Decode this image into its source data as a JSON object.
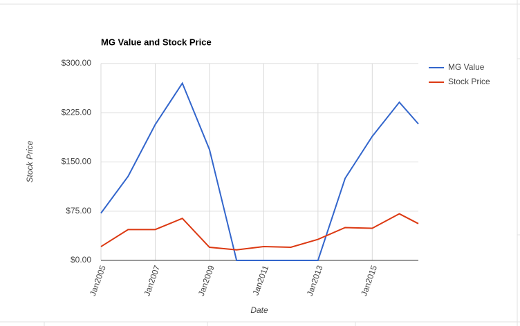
{
  "chart_data": {
    "type": "line",
    "title": "MG Value and Stock Price",
    "x_label": "Date",
    "y_label": "Stock Price",
    "x": [
      2005,
      2006,
      2007,
      2008,
      2009,
      2010,
      2011,
      2012,
      2013,
      2014,
      2015,
      2016,
      2016.7
    ],
    "series": [
      {
        "name": "MG Value",
        "color": "#3366cc",
        "values": [
          72,
          128,
          207,
          270,
          169,
          0,
          0,
          0,
          0,
          125,
          189,
          241,
          208
        ]
      },
      {
        "name": "Stock Price",
        "color": "#dc3912",
        "values": [
          21,
          47,
          47,
          64,
          20,
          16,
          21,
          20,
          32,
          50,
          49,
          71,
          56
        ]
      }
    ],
    "xlim": [
      2005,
      2016.7
    ],
    "xticks": [
      {
        "value": 2005,
        "label": "Jan2005"
      },
      {
        "value": 2007,
        "label": "Jan2007"
      },
      {
        "value": 2009,
        "label": "Jan2009"
      },
      {
        "value": 2011,
        "label": "Jan2011"
      },
      {
        "value": 2013,
        "label": "Jan2013"
      },
      {
        "value": 2015,
        "label": "Jan2015"
      }
    ],
    "ylim": [
      0,
      300
    ],
    "yticks": [
      {
        "value": 0,
        "label": "$0.00"
      },
      {
        "value": 75,
        "label": "$75.00"
      },
      {
        "value": 150,
        "label": "$150.00"
      },
      {
        "value": 225,
        "label": "$225.00"
      },
      {
        "value": 300,
        "label": "$300.00"
      }
    ],
    "grid": true,
    "legend": "right"
  }
}
